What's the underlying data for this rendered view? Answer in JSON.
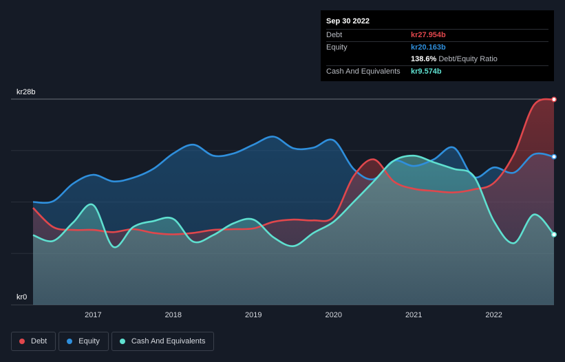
{
  "chart_data": {
    "type": "area",
    "title": "",
    "xlabel": "",
    "ylabel": "",
    "ylim": [
      0,
      28
    ],
    "y_unit": "kr billions",
    "y_ticks": [
      {
        "value": 28,
        "label": "kr28b"
      },
      {
        "value": 0,
        "label": "kr0"
      }
    ],
    "x_ticks": [
      {
        "value": 2017,
        "label": "2017"
      },
      {
        "value": 2018,
        "label": "2018"
      },
      {
        "value": 2019,
        "label": "2019"
      },
      {
        "value": 2020,
        "label": "2020"
      },
      {
        "value": 2021,
        "label": "2021"
      },
      {
        "value": 2022,
        "label": "2022"
      }
    ],
    "xlim": [
      2016.25,
      2022.75
    ],
    "series": [
      {
        "name": "Equity",
        "color": "#2f8fdc",
        "points": [
          [
            2016.25,
            14.0
          ],
          [
            2016.5,
            14.1
          ],
          [
            2016.75,
            16.5
          ],
          [
            2017.0,
            17.7
          ],
          [
            2017.25,
            16.8
          ],
          [
            2017.5,
            17.3
          ],
          [
            2017.75,
            18.5
          ],
          [
            2018.0,
            20.6
          ],
          [
            2018.25,
            21.8
          ],
          [
            2018.5,
            20.3
          ],
          [
            2018.75,
            20.6
          ],
          [
            2019.0,
            21.8
          ],
          [
            2019.25,
            22.9
          ],
          [
            2019.5,
            21.3
          ],
          [
            2019.75,
            21.4
          ],
          [
            2020.0,
            22.4
          ],
          [
            2020.25,
            18.5
          ],
          [
            2020.5,
            17.1
          ],
          [
            2020.75,
            19.6
          ],
          [
            2021.0,
            18.9
          ],
          [
            2021.25,
            19.8
          ],
          [
            2021.5,
            21.4
          ],
          [
            2021.75,
            17.4
          ],
          [
            2022.0,
            18.7
          ],
          [
            2022.25,
            18.0
          ],
          [
            2022.5,
            20.5
          ],
          [
            2022.75,
            20.163
          ]
        ]
      },
      {
        "name": "Debt",
        "color": "#e0474c",
        "points": [
          [
            2016.25,
            13.2
          ],
          [
            2016.5,
            10.6
          ],
          [
            2016.75,
            10.2
          ],
          [
            2017.0,
            10.2
          ],
          [
            2017.25,
            9.9
          ],
          [
            2017.5,
            10.3
          ],
          [
            2017.75,
            9.8
          ],
          [
            2018.0,
            9.6
          ],
          [
            2018.25,
            9.8
          ],
          [
            2018.5,
            10.2
          ],
          [
            2018.75,
            10.3
          ],
          [
            2019.0,
            10.4
          ],
          [
            2019.25,
            11.3
          ],
          [
            2019.5,
            11.6
          ],
          [
            2019.75,
            11.5
          ],
          [
            2020.0,
            12.0
          ],
          [
            2020.25,
            17.5
          ],
          [
            2020.5,
            19.8
          ],
          [
            2020.75,
            16.8
          ],
          [
            2021.0,
            15.8
          ],
          [
            2021.25,
            15.5
          ],
          [
            2021.5,
            15.3
          ],
          [
            2021.75,
            15.7
          ],
          [
            2022.0,
            16.6
          ],
          [
            2022.25,
            20.5
          ],
          [
            2022.5,
            27.2
          ],
          [
            2022.75,
            27.954
          ]
        ]
      },
      {
        "name": "Cash And Equivalents",
        "color": "#5fe0d0",
        "points": [
          [
            2016.25,
            9.5
          ],
          [
            2016.5,
            8.7
          ],
          [
            2016.75,
            11.2
          ],
          [
            2017.0,
            13.6
          ],
          [
            2017.25,
            7.9
          ],
          [
            2017.5,
            10.6
          ],
          [
            2017.75,
            11.4
          ],
          [
            2018.0,
            11.7
          ],
          [
            2018.25,
            8.6
          ],
          [
            2018.5,
            9.5
          ],
          [
            2018.75,
            11.1
          ],
          [
            2019.0,
            11.6
          ],
          [
            2019.25,
            9.2
          ],
          [
            2019.5,
            8.0
          ],
          [
            2019.75,
            9.8
          ],
          [
            2020.0,
            11.3
          ],
          [
            2020.25,
            14.0
          ],
          [
            2020.5,
            16.8
          ],
          [
            2020.75,
            19.6
          ],
          [
            2021.0,
            20.3
          ],
          [
            2021.25,
            19.4
          ],
          [
            2021.5,
            18.5
          ],
          [
            2021.75,
            17.5
          ],
          [
            2022.0,
            11.4
          ],
          [
            2022.25,
            8.4
          ],
          [
            2022.5,
            12.3
          ],
          [
            2022.75,
            9.574
          ]
        ]
      }
    ]
  },
  "tooltip": {
    "date": "Sep 30 2022",
    "debt_label": "Debt",
    "debt_value": "kr27.954b",
    "debt_color": "#e0474c",
    "equity_label": "Equity",
    "equity_value": "kr20.163b",
    "equity_color": "#2f8fdc",
    "ratio_value": "138.6%",
    "ratio_label": "Debt/Equity Ratio",
    "cash_label": "Cash And Equivalents",
    "cash_value": "kr9.574b",
    "cash_color": "#5fe0d0"
  },
  "legend": [
    {
      "label": "Debt",
      "color": "#e0474c"
    },
    {
      "label": "Equity",
      "color": "#2f8fdc"
    },
    {
      "label": "Cash And Equivalents",
      "color": "#5fe0d0"
    }
  ]
}
